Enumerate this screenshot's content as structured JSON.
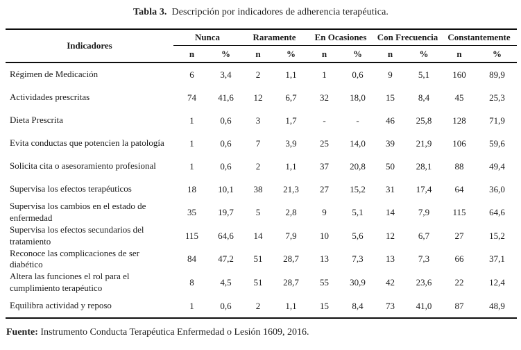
{
  "title": {
    "label": "Tabla 3.",
    "text": "Descripción por indicadores de adherencia terapéutica."
  },
  "table": {
    "indicator_header": "Indicadores",
    "groups": [
      "Nunca",
      "Raramente",
      "En Ocasiones",
      "Con Frecuencia",
      "Constantemente"
    ],
    "sub_headers": [
      "n",
      "%"
    ],
    "rows": [
      {
        "label": "Régimen de Medicación",
        "values": [
          "6",
          "3,4",
          "2",
          "1,1",
          "1",
          "0,6",
          "9",
          "5,1",
          "160",
          "89,9"
        ]
      },
      {
        "label": "Actividades prescritas",
        "values": [
          "74",
          "41,6",
          "12",
          "6,7",
          "32",
          "18,0",
          "15",
          "8,4",
          "45",
          "25,3"
        ]
      },
      {
        "label": "Dieta Prescrita",
        "values": [
          "1",
          "0,6",
          "3",
          "1,7",
          "-",
          "-",
          "46",
          "25,8",
          "128",
          "71,9"
        ]
      },
      {
        "label": "Evita conductas que potencien la patología",
        "values": [
          "1",
          "0,6",
          "7",
          "3,9",
          "25",
          "14,0",
          "39",
          "21,9",
          "106",
          "59,6"
        ]
      },
      {
        "label": "Solicita cita o asesoramiento profesional",
        "values": [
          "1",
          "0,6",
          "2",
          "1,1",
          "37",
          "20,8",
          "50",
          "28,1",
          "88",
          "49,4"
        ]
      },
      {
        "label": "Supervisa los efectos terapéuticos",
        "values": [
          "18",
          "10,1",
          "38",
          "21,3",
          "27",
          "15,2",
          "31",
          "17,4",
          "64",
          "36,0"
        ]
      },
      {
        "label": "Supervisa los cambios en el estado de enfermedad",
        "values": [
          "35",
          "19,7",
          "5",
          "2,8",
          "9",
          "5,1",
          "14",
          "7,9",
          "115",
          "64,6"
        ]
      },
      {
        "label": "Supervisa los efectos secundarios del tratamiento",
        "values": [
          "115",
          "64,6",
          "14",
          "7,9",
          "10",
          "5,6",
          "12",
          "6,7",
          "27",
          "15,2"
        ]
      },
      {
        "label": "Reconoce las complicaciones de ser diabético",
        "values": [
          "84",
          "47,2",
          "51",
          "28,7",
          "13",
          "7,3",
          "13",
          "7,3",
          "66",
          "37,1"
        ]
      },
      {
        "label": "Altera las funciones el rol para el cumplimiento terapéutico",
        "values": [
          "8",
          "4,5",
          "51",
          "28,7",
          "55",
          "30,9",
          "42",
          "23,6",
          "22",
          "12,4"
        ]
      },
      {
        "label": "Equilibra actividad y reposo",
        "values": [
          "1",
          "0,6",
          "2",
          "1,1",
          "15",
          "8,4",
          "73",
          "41,0",
          "87",
          "48,9"
        ]
      }
    ]
  },
  "footer": {
    "label": "Fuente:",
    "text": " Instrumento Conducta Terapéutica Enfermedad o Lesión 1609, 2016."
  }
}
